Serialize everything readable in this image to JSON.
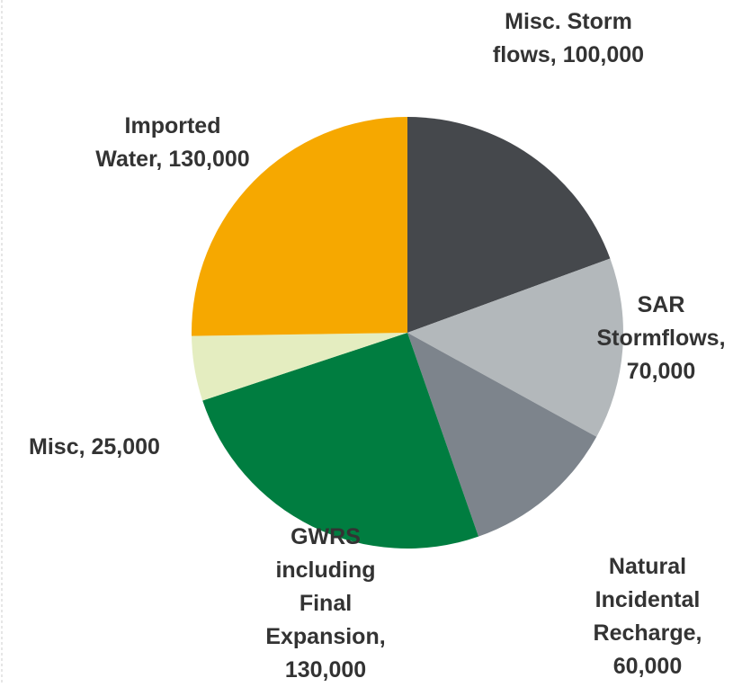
{
  "chart_data": {
    "type": "pie",
    "categories": [
      "Misc. Storm flows,",
      "SAR Stormflows,",
      "Natural Incidental Recharge,",
      "GWRS including Final Expansion,",
      "Misc,",
      "Imported Water,"
    ],
    "values": [
      100000,
      70000,
      60000,
      130000,
      25000,
      130000
    ],
    "value_labels": [
      "100,000",
      "70,000",
      "60,000",
      "130,000",
      "25,000",
      "130,000"
    ],
    "colors": [
      "#45484c",
      "#b3b8bb",
      "#7d848c",
      "#007d40",
      "#e4edc0",
      "#f6a800"
    ]
  }
}
